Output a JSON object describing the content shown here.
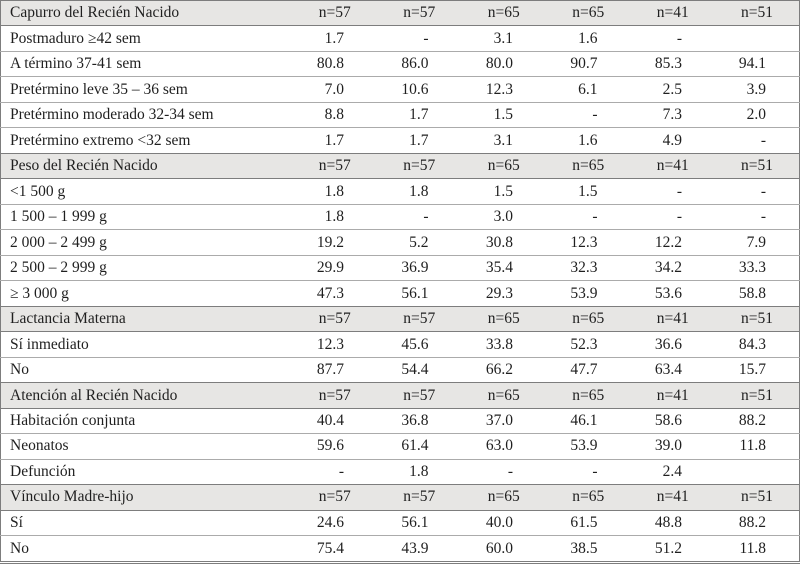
{
  "table": {
    "sections": [
      {
        "header": "Capurro del Recién Nacido",
        "sample_sizes": [
          "n=57",
          "n=57",
          "n=65",
          "n=65",
          "n=41",
          "n=51"
        ],
        "rows": [
          {
            "label": "Postmaduro ≥42 sem",
            "values": [
              "1.7",
              "-",
              "3.1",
              "1.6",
              "-",
              ""
            ]
          },
          {
            "label": "A término 37-41 sem",
            "values": [
              "80.8",
              "86.0",
              "80.0",
              "90.7",
              "85.3",
              "94.1"
            ]
          },
          {
            "label": "Pretérmino leve 35 – 36 sem",
            "values": [
              "7.0",
              "10.6",
              "12.3",
              "6.1",
              "2.5",
              "3.9"
            ]
          },
          {
            "label": "Pretérmino moderado 32-34 sem",
            "values": [
              "8.8",
              "1.7",
              "1.5",
              "-",
              "7.3",
              "2.0"
            ]
          },
          {
            "label": "Pretérmino extremo <32 sem",
            "values": [
              "1.7",
              "1.7",
              "3.1",
              "1.6",
              "4.9",
              "-"
            ]
          }
        ]
      },
      {
        "header": "Peso del Recién Nacido",
        "sample_sizes": [
          "n=57",
          "n=57",
          "n=65",
          "n=65",
          "n=41",
          "n=51"
        ],
        "rows": [
          {
            "label": "<1 500 g",
            "values": [
              "1.8",
              "1.8",
              "1.5",
              "1.5",
              "-",
              "-"
            ]
          },
          {
            "label": "1 500 – 1 999 g",
            "values": [
              "1.8",
              "-",
              "3.0",
              "-",
              "-",
              "-"
            ]
          },
          {
            "label": "2 000 – 2 499 g",
            "values": [
              "19.2",
              "5.2",
              "30.8",
              "12.3",
              "12.2",
              "7.9"
            ]
          },
          {
            "label": "2 500 – 2 999 g",
            "values": [
              "29.9",
              "36.9",
              "35.4",
              "32.3",
              "34.2",
              "33.3"
            ]
          },
          {
            "label": "≥ 3 000 g",
            "values": [
              "47.3",
              "56.1",
              "29.3",
              "53.9",
              "53.6",
              "58.8"
            ]
          }
        ]
      },
      {
        "header": "Lactancia Materna",
        "sample_sizes": [
          "n=57",
          "n=57",
          "n=65",
          "n=65",
          "n=41",
          "n=51"
        ],
        "rows": [
          {
            "label": "Sí inmediato",
            "values": [
              "12.3",
              "45.6",
              "33.8",
              "52.3",
              "36.6",
              "84.3"
            ]
          },
          {
            "label": "No",
            "values": [
              "87.7",
              "54.4",
              "66.2",
              "47.7",
              "63.4",
              "15.7"
            ]
          }
        ]
      },
      {
        "header": "Atención al Recién Nacido",
        "sample_sizes": [
          "n=57",
          "n=57",
          "n=65",
          "n=65",
          "n=41",
          "n=51"
        ],
        "rows": [
          {
            "label": "Habitación conjunta",
            "values": [
              "40.4",
              "36.8",
              "37.0",
              "46.1",
              "58.6",
              "88.2"
            ]
          },
          {
            "label": "Neonatos",
            "values": [
              "59.6",
              "61.4",
              "63.0",
              "53.9",
              "39.0",
              "11.8"
            ]
          },
          {
            "label": "Defunción",
            "values": [
              "-",
              "1.8",
              "-",
              "-",
              "2.4",
              ""
            ]
          }
        ]
      },
      {
        "header": "Vínculo Madre-hijo",
        "sample_sizes": [
          "n=57",
          "n=57",
          "n=65",
          "n=65",
          "n=41",
          "n=51"
        ],
        "rows": [
          {
            "label": "Sí",
            "values": [
              "24.6",
              "56.1",
              "40.0",
              "61.5",
              "48.8",
              "88.2"
            ]
          },
          {
            "label": "No",
            "values": [
              "75.4",
              "43.9",
              "60.0",
              "38.5",
              "51.2",
              "11.8"
            ]
          }
        ]
      }
    ]
  }
}
